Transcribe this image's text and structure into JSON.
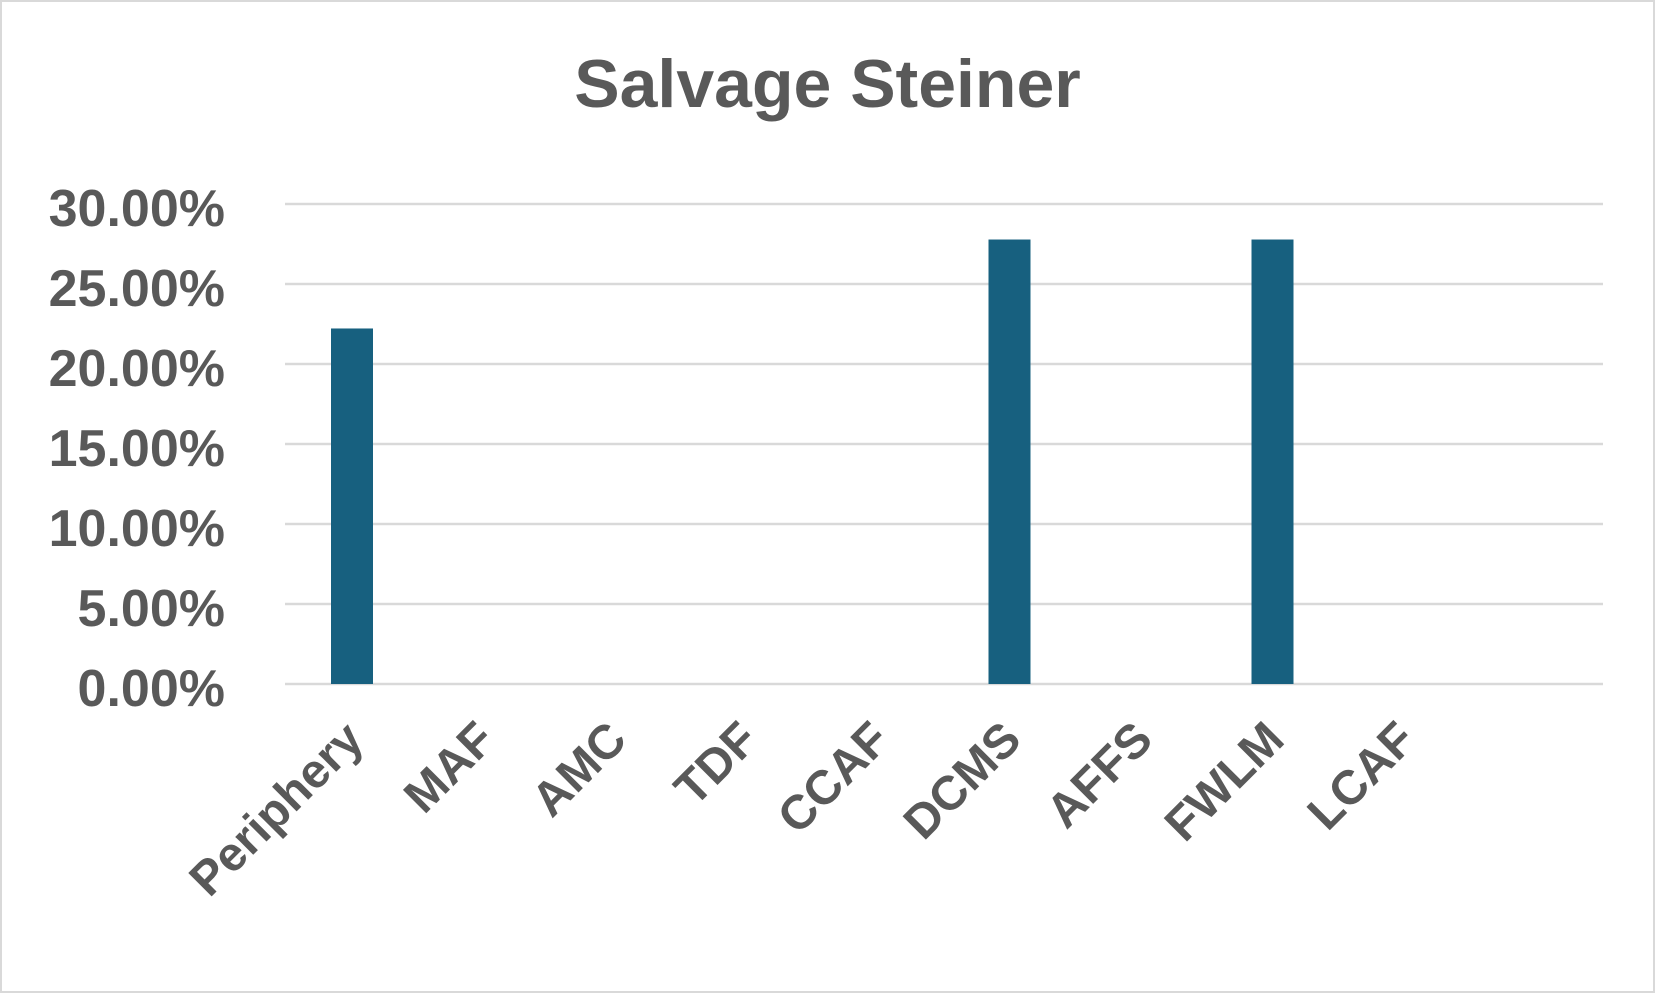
{
  "chart_data": {
    "type": "bar",
    "title": "Salvage Steiner",
    "xlabel": "",
    "ylabel": "",
    "categories": [
      "Periphery",
      "MAF",
      "AMC",
      "TDF",
      "CCAF",
      "DCMS",
      "AFFS",
      "FWLM",
      "LCAF"
    ],
    "series": [
      {
        "values": [
          22.22,
          0,
          0,
          0,
          0,
          27.78,
          0,
          27.78,
          0
        ]
      }
    ],
    "y_ticks": [
      "0.00%",
      "5.00%",
      "10.00%",
      "15.00%",
      "20.00%",
      "25.00%",
      "30.00%"
    ],
    "ylim": [
      0,
      30
    ],
    "grid": true,
    "legend": "none",
    "colors": {
      "bar": "#17607f",
      "grid": "#d9d9d9",
      "text": "#595959"
    }
  }
}
